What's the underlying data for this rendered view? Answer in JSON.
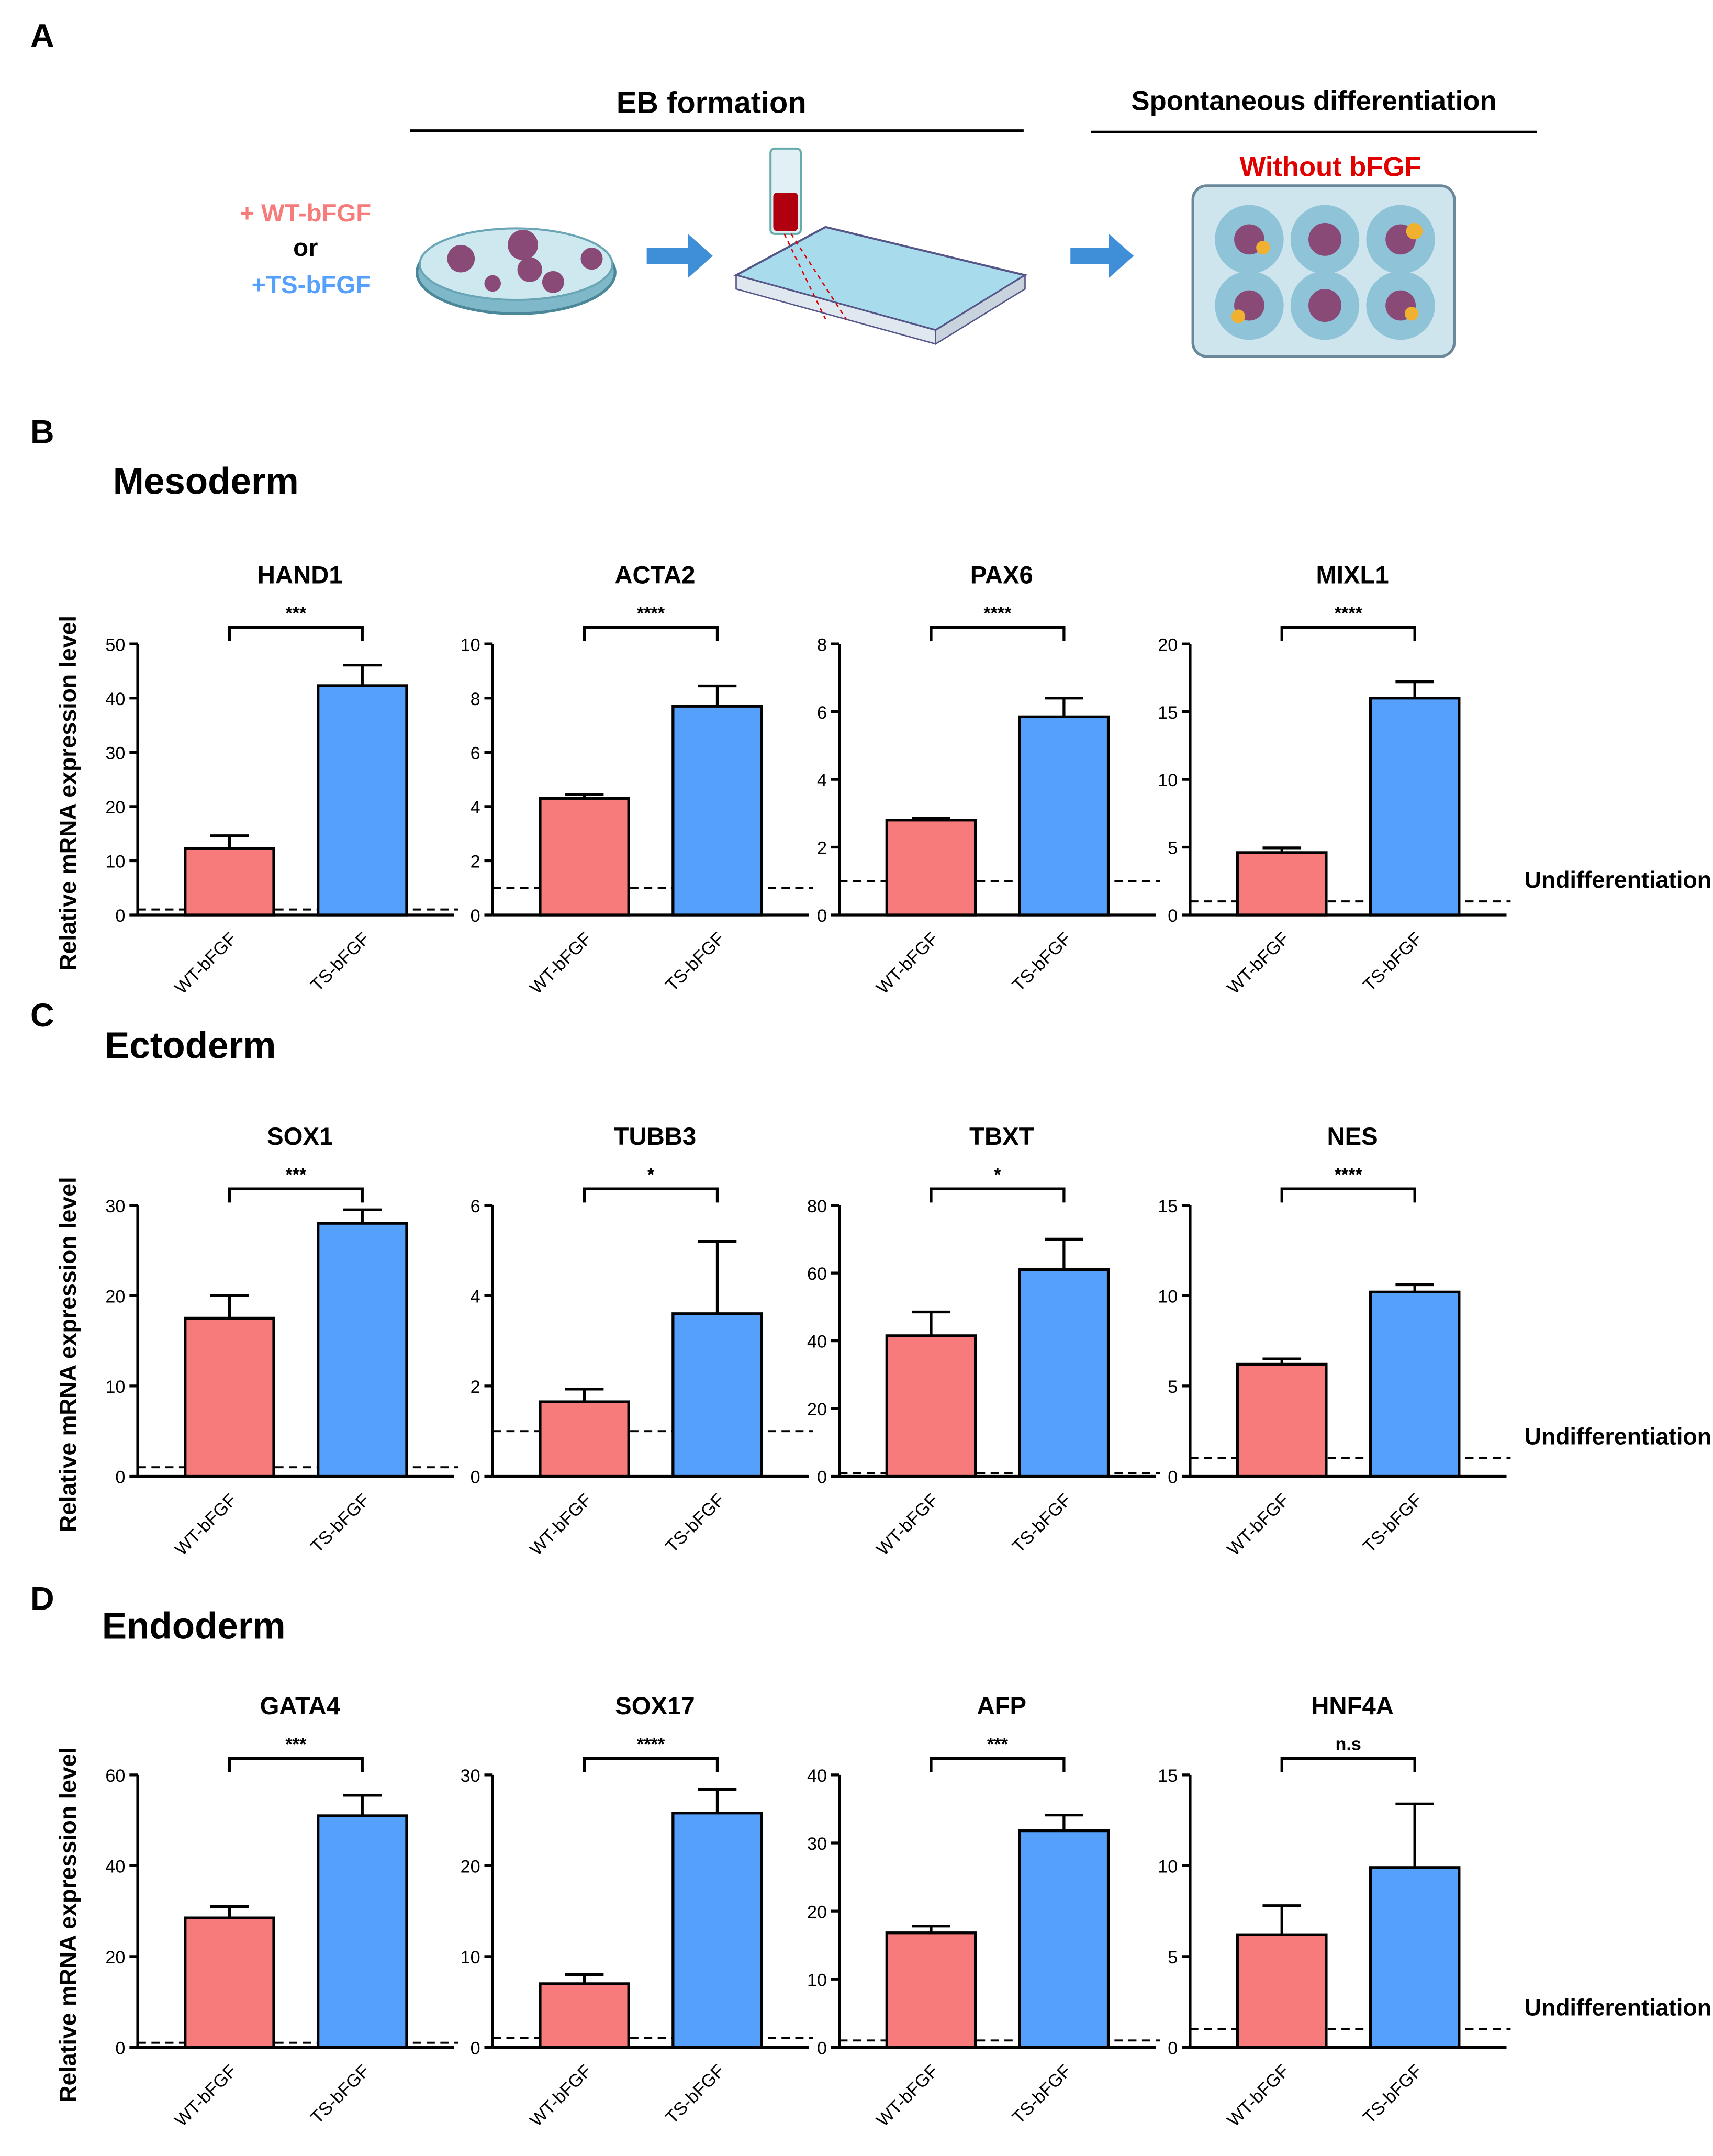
{
  "panel_a": {
    "label": "A",
    "eb_title": "EB formation",
    "diff_title": "Spontaneous differentiation",
    "without": "Without bFGF",
    "wt": "+ WT-bFGF",
    "or": "or",
    "ts": "+TS-bFGF"
  },
  "sections": [
    {
      "label": "B",
      "title": "Mesoderm"
    },
    {
      "label": "C",
      "title": "Ectoderm"
    },
    {
      "label": "D",
      "title": "Endoderm"
    }
  ],
  "chart_data": [
    {
      "type": "bar",
      "title": "HAND1",
      "ylabel": "Relative mRNA expression level",
      "categories": [
        "WT-bFGF",
        "TS-bFGF"
      ],
      "values": [
        12.3,
        42.3
      ],
      "errors": [
        2.3,
        3.8
      ],
      "colors": [
        "#f77b7b",
        "#55a0fb"
      ],
      "ylim": [
        0,
        50
      ],
      "yticks": [
        0,
        10,
        20,
        30,
        40,
        50
      ],
      "annotation": "***",
      "reference_line": 1
    },
    {
      "type": "bar",
      "title": "ACTA2",
      "categories": [
        "WT-bFGF",
        "TS-bFGF"
      ],
      "values": [
        4.3,
        7.7
      ],
      "errors": [
        0.15,
        0.75
      ],
      "colors": [
        "#f77b7b",
        "#55a0fb"
      ],
      "ylim": [
        0,
        10
      ],
      "yticks": [
        0,
        2,
        4,
        6,
        8,
        10
      ],
      "annotation": "****",
      "reference_line": 1
    },
    {
      "type": "bar",
      "title": "PAX6",
      "categories": [
        "WT-bFGF",
        "TS-bFGF"
      ],
      "values": [
        2.8,
        5.85
      ],
      "errors": [
        0.05,
        0.55
      ],
      "colors": [
        "#f77b7b",
        "#55a0fb"
      ],
      "ylim": [
        0,
        8
      ],
      "yticks": [
        0,
        2,
        4,
        6,
        8
      ],
      "annotation": "****",
      "reference_line": 1
    },
    {
      "type": "bar",
      "title": "MIXL1",
      "categories": [
        "WT-bFGF",
        "TS-bFGF"
      ],
      "values": [
        4.6,
        16.0
      ],
      "errors": [
        0.35,
        1.2
      ],
      "colors": [
        "#f77b7b",
        "#55a0fb"
      ],
      "ylim": [
        0,
        20
      ],
      "yticks": [
        0,
        5,
        10,
        15,
        20
      ],
      "annotation": "****",
      "reference_line": 1,
      "reference_label": "Undifferentiation"
    },
    {
      "type": "bar",
      "title": "SOX1",
      "ylabel": "Relative mRNA expression level",
      "categories": [
        "WT-bFGF",
        "TS-bFGF"
      ],
      "values": [
        17.5,
        28
      ],
      "errors": [
        2.5,
        1.5
      ],
      "colors": [
        "#f77b7b",
        "#55a0fb"
      ],
      "ylim": [
        0,
        30
      ],
      "yticks": [
        0,
        10,
        20,
        30
      ],
      "annotation": "***",
      "reference_line": 1
    },
    {
      "type": "bar",
      "title": "TUBB3",
      "categories": [
        "WT-bFGF",
        "TS-bFGF"
      ],
      "values": [
        1.65,
        3.6
      ],
      "errors": [
        0.28,
        1.6
      ],
      "colors": [
        "#f77b7b",
        "#55a0fb"
      ],
      "ylim": [
        0,
        6
      ],
      "yticks": [
        0,
        2,
        4,
        6
      ],
      "annotation": "*",
      "reference_line": 1
    },
    {
      "type": "bar",
      "title": "TBXT",
      "categories": [
        "WT-bFGF",
        "TS-bFGF"
      ],
      "values": [
        41.5,
        61
      ],
      "errors": [
        7,
        9
      ],
      "colors": [
        "#f77b7b",
        "#55a0fb"
      ],
      "ylim": [
        0,
        80
      ],
      "yticks": [
        0,
        20,
        40,
        60,
        80
      ],
      "annotation": "*",
      "reference_line": 1
    },
    {
      "type": "bar",
      "title": "NES",
      "categories": [
        "WT-bFGF",
        "TS-bFGF"
      ],
      "values": [
        6.2,
        10.2
      ],
      "errors": [
        0.3,
        0.4
      ],
      "colors": [
        "#f77b7b",
        "#55a0fb"
      ],
      "ylim": [
        0,
        15
      ],
      "yticks": [
        0,
        5,
        10,
        15
      ],
      "annotation": "****",
      "reference_line": 1,
      "reference_label": "Undifferentiation"
    },
    {
      "type": "bar",
      "title": "GATA4",
      "ylabel": "Relative mRNA expression level",
      "categories": [
        "WT-bFGF",
        "TS-bFGF"
      ],
      "values": [
        28.5,
        51
      ],
      "errors": [
        2.5,
        4.5
      ],
      "colors": [
        "#f77b7b",
        "#55a0fb"
      ],
      "ylim": [
        0,
        60
      ],
      "yticks": [
        0,
        20,
        40,
        60
      ],
      "annotation": "***",
      "reference_line": 1
    },
    {
      "type": "bar",
      "title": "SOX17",
      "categories": [
        "WT-bFGF",
        "TS-bFGF"
      ],
      "values": [
        7,
        25.8
      ],
      "errors": [
        1,
        2.6
      ],
      "colors": [
        "#f77b7b",
        "#55a0fb"
      ],
      "ylim": [
        0,
        30
      ],
      "yticks": [
        0,
        10,
        20,
        30
      ],
      "annotation": "****",
      "reference_line": 1
    },
    {
      "type": "bar",
      "title": "AFP",
      "categories": [
        "WT-bFGF",
        "TS-bFGF"
      ],
      "values": [
        16.8,
        31.8
      ],
      "errors": [
        1,
        2.3
      ],
      "colors": [
        "#f77b7b",
        "#55a0fb"
      ],
      "ylim": [
        0,
        40
      ],
      "yticks": [
        0,
        10,
        20,
        30,
        40
      ],
      "annotation": "***",
      "reference_line": 1
    },
    {
      "type": "bar",
      "title": "HNF4A",
      "categories": [
        "WT-bFGF",
        "TS-bFGF"
      ],
      "values": [
        6.2,
        9.9
      ],
      "errors": [
        1.6,
        3.5
      ],
      "colors": [
        "#f77b7b",
        "#55a0fb"
      ],
      "ylim": [
        0,
        15
      ],
      "yticks": [
        0,
        5,
        10,
        15
      ],
      "annotation": "n.s",
      "reference_line": 1,
      "reference_label": "Undifferentiation"
    }
  ]
}
